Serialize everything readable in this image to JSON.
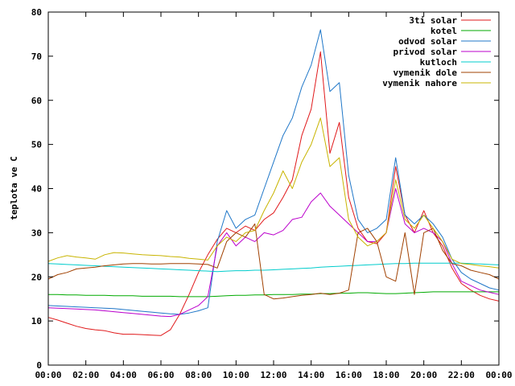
{
  "chart_data": {
    "type": "line",
    "title": "",
    "xlabel": "",
    "ylabel": "teplota ve C",
    "xlim": [
      "00:00",
      "00:00"
    ],
    "ylim": [
      0,
      80
    ],
    "grid": false,
    "legend_position": "top-right",
    "x_ticks": [
      "00:00",
      "02:00",
      "04:00",
      "06:00",
      "08:00",
      "10:00",
      "12:00",
      "14:00",
      "16:00",
      "18:00",
      "20:00",
      "22:00",
      "00:00"
    ],
    "y_ticks": [
      0,
      10,
      20,
      30,
      40,
      50,
      60,
      70,
      80
    ],
    "x": [
      "00:00",
      "00:30",
      "01:00",
      "01:30",
      "02:00",
      "02:30",
      "03:00",
      "03:30",
      "04:00",
      "04:30",
      "05:00",
      "05:30",
      "06:00",
      "06:30",
      "07:00",
      "07:30",
      "08:00",
      "08:30",
      "09:00",
      "09:30",
      "10:00",
      "10:30",
      "11:00",
      "11:30",
      "12:00",
      "12:30",
      "13:00",
      "13:30",
      "14:00",
      "14:30",
      "15:00",
      "15:30",
      "16:00",
      "16:30",
      "17:00",
      "17:30",
      "18:00",
      "18:30",
      "19:00",
      "19:30",
      "20:00",
      "20:30",
      "21:00",
      "21:30",
      "22:00",
      "22:30",
      "23:00",
      "23:30",
      "24:00"
    ],
    "series": [
      {
        "name": "3ti solar",
        "color": "#e0191b",
        "values": [
          10.8,
          10.2,
          9.5,
          8.8,
          8.3,
          8.0,
          7.8,
          7.3,
          7.0,
          7.0,
          6.9,
          6.8,
          6.7,
          8.0,
          11.5,
          16.0,
          21.0,
          25.0,
          28.5,
          31.0,
          30.0,
          31.5,
          30.5,
          33.0,
          34.5,
          38.0,
          42.0,
          52.0,
          58.0,
          71.0,
          48.0,
          55.0,
          38.0,
          31.0,
          28.0,
          27.5,
          30.0,
          45.0,
          34.0,
          30.0,
          35.0,
          30.0,
          27.0,
          22.0,
          18.5,
          17.0,
          15.8,
          15.0,
          14.5
        ]
      },
      {
        "name": "kotel",
        "color": "#00aa00",
        "values": [
          16.0,
          16.0,
          15.9,
          15.9,
          15.8,
          15.8,
          15.8,
          15.7,
          15.7,
          15.7,
          15.6,
          15.6,
          15.6,
          15.6,
          15.5,
          15.5,
          15.5,
          15.5,
          15.6,
          15.7,
          15.8,
          15.8,
          15.9,
          15.9,
          16.0,
          16.0,
          16.0,
          16.1,
          16.1,
          16.2,
          16.2,
          16.3,
          16.3,
          16.4,
          16.4,
          16.3,
          16.2,
          16.2,
          16.3,
          16.4,
          16.5,
          16.6,
          16.6,
          16.6,
          16.6,
          16.6,
          16.6,
          16.6,
          16.6
        ]
      },
      {
        "name": "odvod solar",
        "color": "#1f77c8",
        "values": [
          13.5,
          13.4,
          13.3,
          13.2,
          13.1,
          13.0,
          12.9,
          12.8,
          12.6,
          12.4,
          12.2,
          12.0,
          11.8,
          11.6,
          11.5,
          11.8,
          12.3,
          13.0,
          28.0,
          35.0,
          31.0,
          33.0,
          34.0,
          40.0,
          46.0,
          52.0,
          56.0,
          63.0,
          68.0,
          76.0,
          62.0,
          64.0,
          43.0,
          33.0,
          30.0,
          31.0,
          33.0,
          47.0,
          34.0,
          32.0,
          34.0,
          32.0,
          29.0,
          24.0,
          21.0,
          19.5,
          18.5,
          17.5,
          17.0
        ]
      },
      {
        "name": "privod solar",
        "color": "#bb00cc",
        "values": [
          13.0,
          12.9,
          12.8,
          12.7,
          12.6,
          12.5,
          12.3,
          12.1,
          11.9,
          11.7,
          11.5,
          11.3,
          11.1,
          11.0,
          11.5,
          12.5,
          13.5,
          15.5,
          27.0,
          30.0,
          27.0,
          29.0,
          28.0,
          30.0,
          29.5,
          30.5,
          33.0,
          33.5,
          37.0,
          39.0,
          36.0,
          34.0,
          32.0,
          30.0,
          28.0,
          28.0,
          30.0,
          40.0,
          32.0,
          30.0,
          31.0,
          30.0,
          28.0,
          23.0,
          19.0,
          18.0,
          17.0,
          16.5,
          16.0
        ]
      },
      {
        "name": "kutloch",
        "color": "#00cccc",
        "values": [
          23.0,
          22.9,
          22.8,
          22.7,
          22.6,
          22.5,
          22.4,
          22.3,
          22.2,
          22.1,
          22.0,
          21.9,
          21.8,
          21.7,
          21.6,
          21.5,
          21.4,
          21.3,
          21.2,
          21.3,
          21.4,
          21.4,
          21.5,
          21.5,
          21.6,
          21.7,
          21.8,
          21.9,
          22.0,
          22.2,
          22.3,
          22.4,
          22.5,
          22.6,
          22.7,
          22.8,
          22.9,
          23.0,
          23.0,
          23.1,
          23.1,
          23.1,
          23.1,
          23.1,
          23.1,
          23.0,
          22.9,
          22.8,
          22.7
        ]
      },
      {
        "name": "vymenik dole",
        "color": "#a04000",
        "values": [
          19.5,
          20.5,
          21.0,
          21.8,
          22.0,
          22.2,
          22.5,
          22.7,
          22.9,
          23.0,
          23.0,
          22.9,
          22.9,
          23.0,
          23.0,
          23.0,
          22.9,
          22.8,
          22.0,
          28.0,
          30.0,
          29.0,
          32.0,
          16.0,
          15.0,
          15.2,
          15.5,
          15.8,
          16.0,
          16.3,
          16.0,
          16.3,
          17.0,
          30.0,
          31.0,
          28.0,
          20.0,
          19.0,
          30.0,
          16.0,
          30.0,
          31.0,
          26.0,
          23.0,
          22.5,
          21.5,
          21.0,
          20.5,
          19.5
        ]
      },
      {
        "name": "vymenik nahore",
        "color": "#c8b400",
        "values": [
          23.5,
          24.3,
          24.8,
          24.5,
          24.3,
          24.0,
          25.0,
          25.5,
          25.4,
          25.2,
          25.0,
          24.9,
          24.8,
          24.6,
          24.5,
          24.2,
          24.0,
          23.8,
          27.0,
          29.0,
          28.0,
          30.0,
          30.5,
          35.0,
          39.0,
          44.0,
          40.0,
          46.0,
          50.0,
          56.0,
          45.0,
          47.0,
          33.0,
          29.0,
          27.0,
          28.0,
          30.0,
          42.0,
          33.0,
          31.0,
          34.0,
          31.0,
          28.0,
          24.0,
          23.0,
          22.8,
          22.5,
          22.3,
          22.0
        ]
      }
    ]
  }
}
